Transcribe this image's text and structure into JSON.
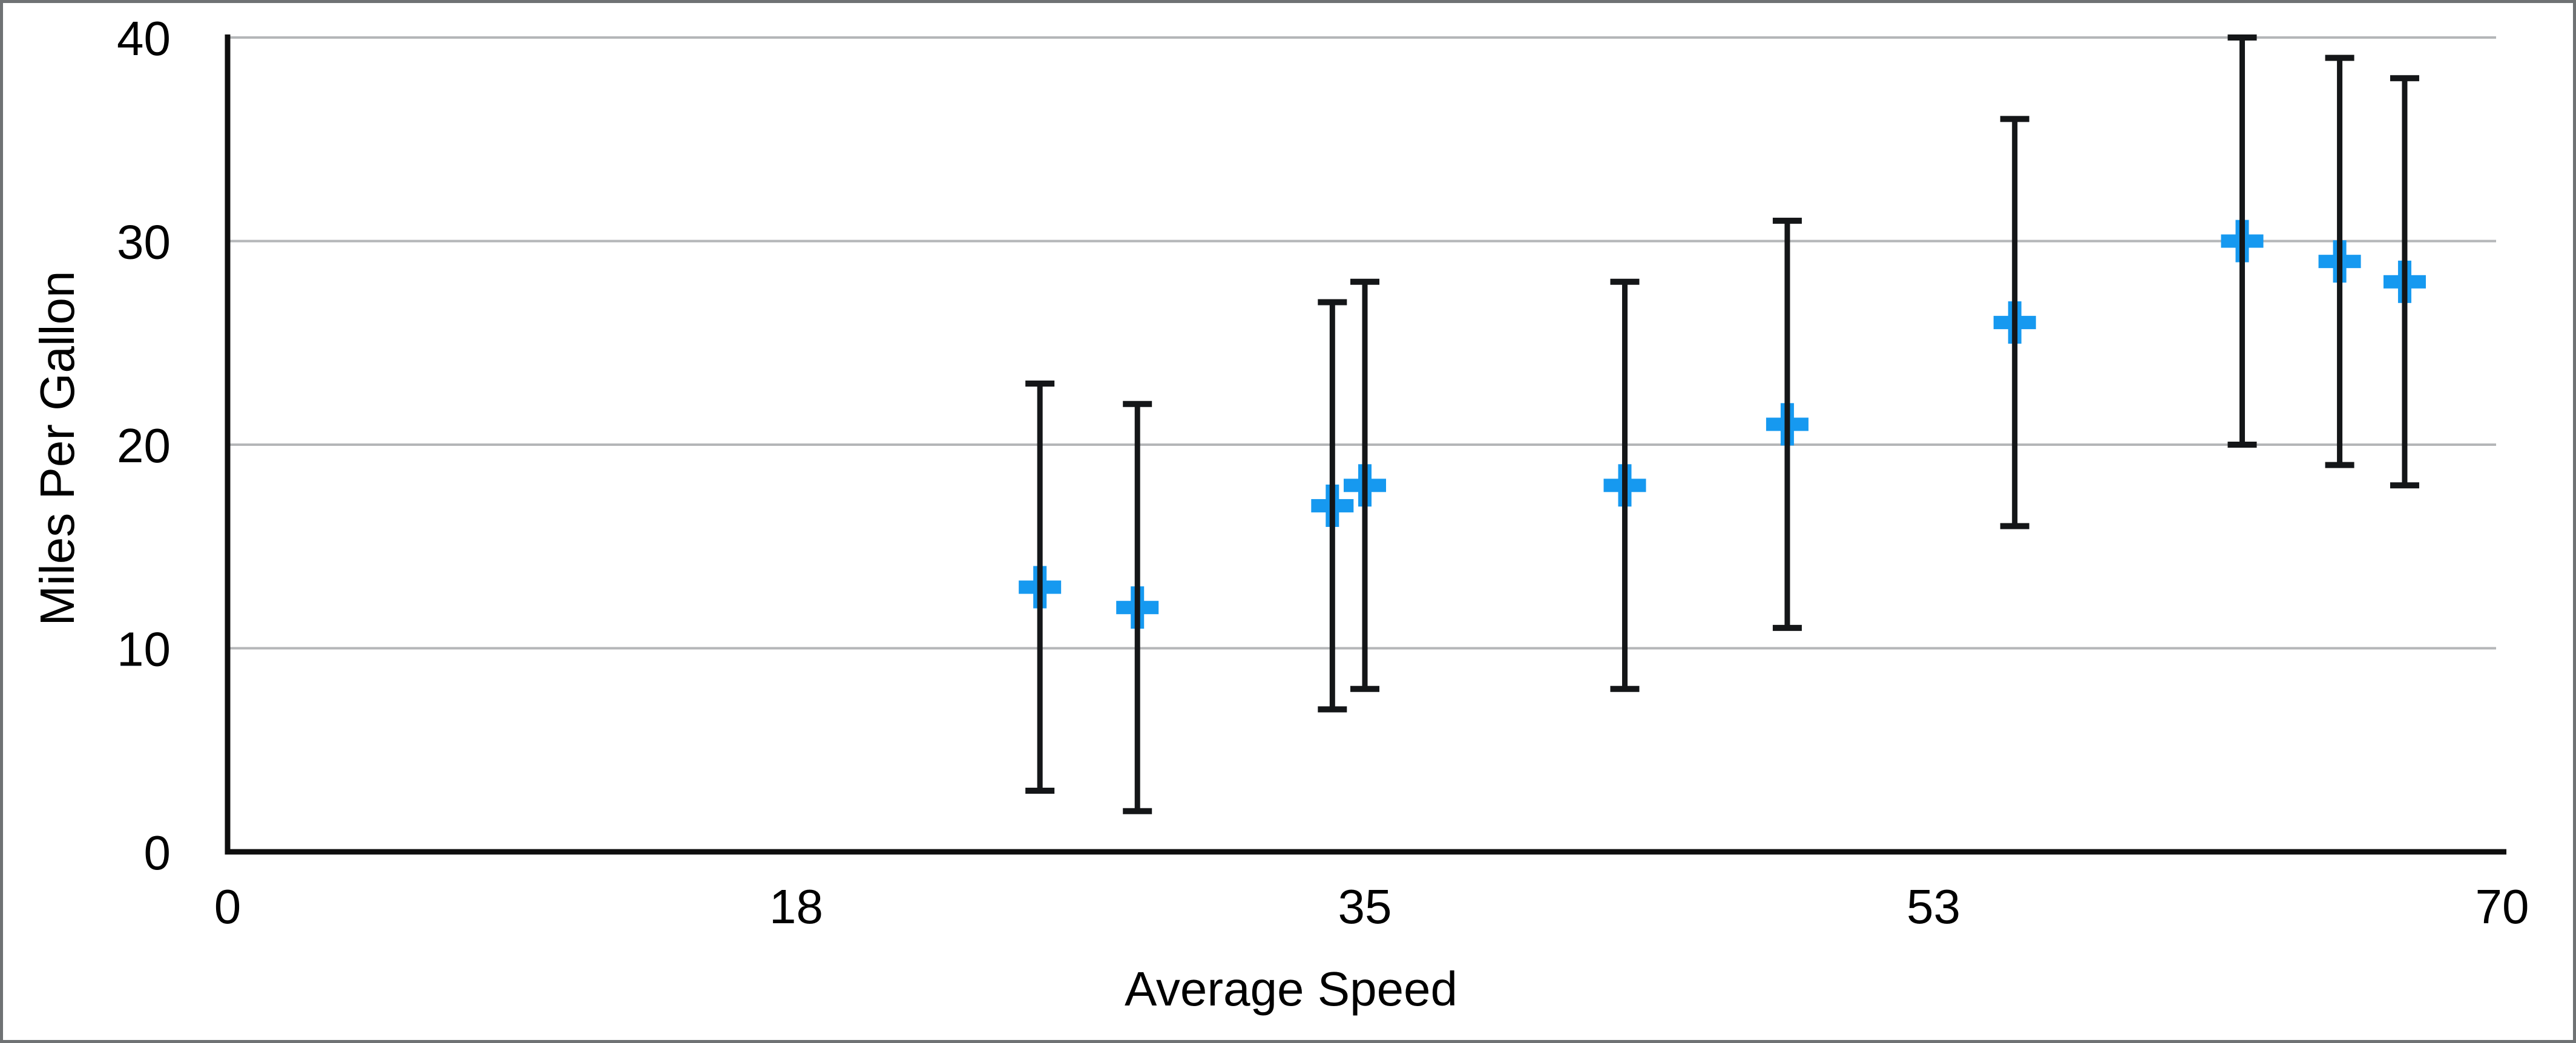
{
  "figure": {
    "background_color": "#ffffff",
    "border_color": "#6f7274"
  },
  "chart_data": {
    "type": "scatter",
    "title": "",
    "xlabel": "Average Speed",
    "ylabel": "Miles Per Gallon",
    "xlim": [
      0,
      70
    ],
    "ylim": [
      0,
      40
    ],
    "grid": "horizontal",
    "legend": "none",
    "marker_style": "plus",
    "error_bars": "symmetric-y",
    "style": {
      "marker_color": "#1699f0",
      "error_bar_color": "#141618",
      "gridline_color": "#b4b6b8",
      "axis_color": "#0e0e0e",
      "tick_label_color": "#000000"
    },
    "xticks": [
      {
        "v": 0,
        "label": "0"
      },
      {
        "v": 17.5,
        "label": "18"
      },
      {
        "v": 35,
        "label": "35"
      },
      {
        "v": 52.5,
        "label": "53"
      },
      {
        "v": 70,
        "label": "70"
      }
    ],
    "yticks": [
      {
        "v": 0,
        "label": "0"
      },
      {
        "v": 10,
        "label": "10"
      },
      {
        "v": 20,
        "label": "20"
      },
      {
        "v": 30,
        "label": "30"
      },
      {
        "v": 40,
        "label": "40"
      }
    ],
    "series": [
      {
        "name": "Miles Per Gallon",
        "points": [
          {
            "x": 25,
            "y": 13,
            "err": 10
          },
          {
            "x": 28,
            "y": 12,
            "err": 10
          },
          {
            "x": 34,
            "y": 17,
            "err": 10
          },
          {
            "x": 35,
            "y": 18,
            "err": 10
          },
          {
            "x": 43,
            "y": 18,
            "err": 10
          },
          {
            "x": 48,
            "y": 21,
            "err": 10
          },
          {
            "x": 55,
            "y": 26,
            "err": 10
          },
          {
            "x": 62,
            "y": 30,
            "err": 10
          },
          {
            "x": 65,
            "y": 29,
            "err": 10
          },
          {
            "x": 67,
            "y": 28,
            "err": 10
          }
        ]
      }
    ]
  }
}
